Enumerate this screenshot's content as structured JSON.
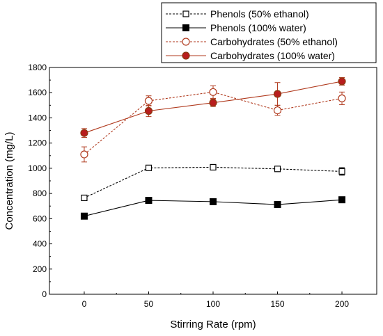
{
  "chart_data": {
    "type": "line",
    "xlabel": "Stirring Rate (rpm)",
    "ylabel": "Concentration (mg/L)",
    "xlim": [
      -27,
      227
    ],
    "ylim": [
      0,
      1800
    ],
    "xticks": [
      0,
      50,
      100,
      150,
      200
    ],
    "yticks": [
      0,
      200,
      400,
      600,
      800,
      1000,
      1200,
      1400,
      1600,
      1800
    ],
    "x": [
      0,
      50,
      100,
      150,
      200
    ],
    "grid": false,
    "legend_position": "top-right",
    "series": [
      {
        "name": "Phenols (50% ethanol)",
        "values": [
          765,
          1003,
          1008,
          995,
          975
        ],
        "errors": [
          15,
          15,
          12,
          12,
          30
        ],
        "color": "#000000",
        "line_style": "dashed",
        "marker": "open-square"
      },
      {
        "name": "Phenols (100% water)",
        "values": [
          620,
          745,
          735,
          712,
          750
        ],
        "errors": [
          12,
          12,
          12,
          12,
          12
        ],
        "color": "#000000",
        "line_style": "solid",
        "marker": "filled-square"
      },
      {
        "name": "Carbohydrates (50% ethanol)",
        "values": [
          1110,
          1535,
          1605,
          1460,
          1555
        ],
        "errors": [
          60,
          40,
          50,
          40,
          50
        ],
        "color": "#b03a1e",
        "line_style": "dashed",
        "marker": "open-circle"
      },
      {
        "name": "Carbohydrates (100% water)",
        "values": [
          1280,
          1455,
          1520,
          1590,
          1690
        ],
        "errors": [
          35,
          45,
          30,
          90,
          30
        ],
        "color": "#b03a1e",
        "line_style": "solid",
        "marker": "filled-circle"
      }
    ]
  },
  "colors": {
    "marker_fill_red": "#b81d1d",
    "marker_edge_red": "#8a3a10",
    "axis": "#000000"
  }
}
